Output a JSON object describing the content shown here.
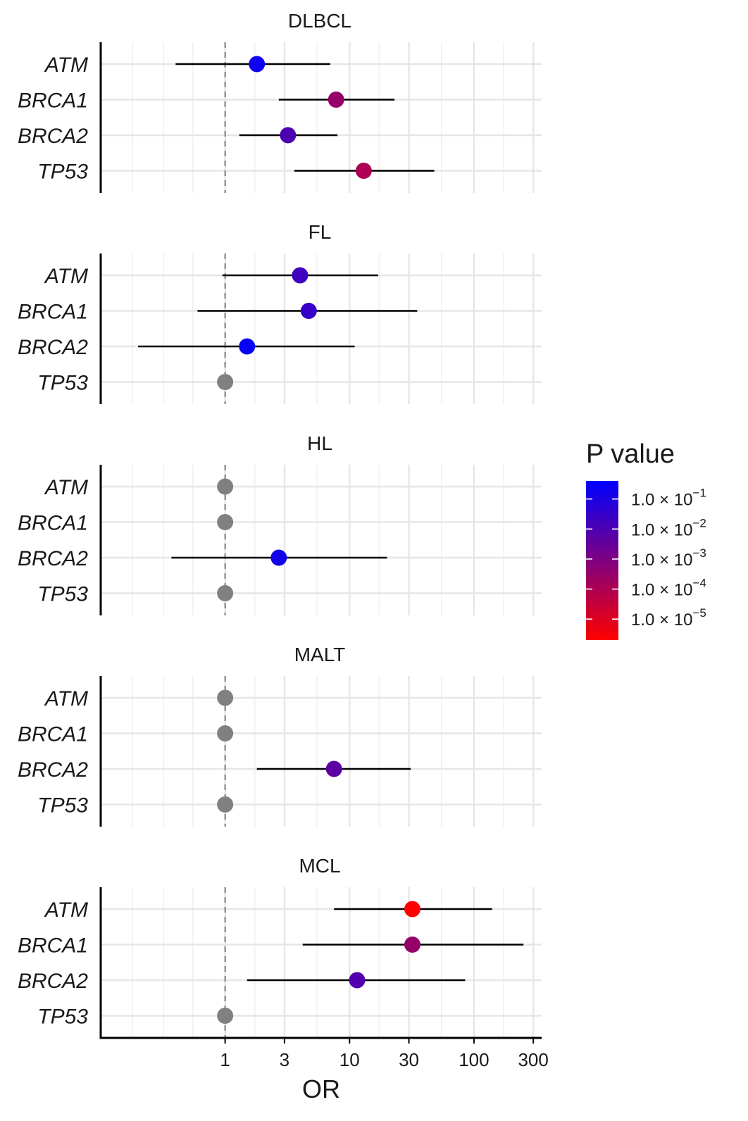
{
  "chart_data": {
    "type": "scatter",
    "subtype": "forest-plot",
    "xlabel": "OR",
    "xscale": "log",
    "x_ticks": [
      1,
      3,
      10,
      30,
      100,
      300
    ],
    "x_tick_labels": [
      "1",
      "3",
      "10",
      "30",
      "100",
      "300"
    ],
    "xlim": [
      0.1,
      350
    ],
    "reference_line": 1,
    "grid": true,
    "legend": {
      "title": "P value",
      "placement": "right",
      "scale": "log",
      "range": [
        2e-06,
        0.4
      ],
      "ticks": [
        0.1,
        0.01,
        0.001,
        0.0001,
        1e-05
      ],
      "tick_labels": [
        {
          "mantissa": "1.0",
          "exponent": "−1"
        },
        {
          "mantissa": "1.0",
          "exponent": "−2"
        },
        {
          "mantissa": "1.0",
          "exponent": "−3"
        },
        {
          "mantissa": "1.0",
          "exponent": "−4"
        },
        {
          "mantissa": "1.0",
          "exponent": "−5"
        }
      ],
      "colors": [
        "#0000ff",
        "#ff0000"
      ]
    },
    "na_color": "#808080",
    "panels": [
      {
        "title": "DLBCL",
        "rows": [
          {
            "gene": "ATM",
            "or": 1.8,
            "lo": 0.4,
            "hi": 7,
            "p": 0.2
          },
          {
            "gene": "BRCA1",
            "or": 7.8,
            "lo": 2.7,
            "hi": 23,
            "p": 0.0003
          },
          {
            "gene": "BRCA2",
            "or": 3.2,
            "lo": 1.3,
            "hi": 8,
            "p": 0.01
          },
          {
            "gene": "TP53",
            "or": 13,
            "lo": 3.6,
            "hi": 48,
            "p": 0.0001
          }
        ]
      },
      {
        "title": "FL",
        "rows": [
          {
            "gene": "ATM",
            "or": 4.0,
            "lo": 0.95,
            "hi": 17,
            "p": 0.02
          },
          {
            "gene": "BRCA1",
            "or": 4.7,
            "lo": 0.6,
            "hi": 35,
            "p": 0.03
          },
          {
            "gene": "BRCA2",
            "or": 1.5,
            "lo": 0.2,
            "hi": 11,
            "p": 0.3
          },
          {
            "gene": "TP53",
            "or": 1,
            "lo": null,
            "hi": null,
            "p": null
          }
        ]
      },
      {
        "title": "HL",
        "rows": [
          {
            "gene": "ATM",
            "or": 1,
            "lo": null,
            "hi": null,
            "p": null
          },
          {
            "gene": "BRCA1",
            "or": 1,
            "lo": null,
            "hi": null,
            "p": null
          },
          {
            "gene": "BRCA2",
            "or": 2.7,
            "lo": 0.37,
            "hi": 20,
            "p": 0.15
          },
          {
            "gene": "TP53",
            "or": 1,
            "lo": null,
            "hi": null,
            "p": null
          }
        ]
      },
      {
        "title": "MALT",
        "rows": [
          {
            "gene": "ATM",
            "or": 1,
            "lo": null,
            "hi": null,
            "p": null
          },
          {
            "gene": "BRCA1",
            "or": 1,
            "lo": null,
            "hi": null,
            "p": null
          },
          {
            "gene": "BRCA2",
            "or": 7.5,
            "lo": 1.8,
            "hi": 31,
            "p": 0.005
          },
          {
            "gene": "TP53",
            "or": 1,
            "lo": null,
            "hi": null,
            "p": null
          }
        ]
      },
      {
        "title": "MCL",
        "rows": [
          {
            "gene": "ATM",
            "or": 32,
            "lo": 7.5,
            "hi": 140,
            "p": 2e-06
          },
          {
            "gene": "BRCA1",
            "or": 32,
            "lo": 4.2,
            "hi": 250,
            "p": 0.0003
          },
          {
            "gene": "BRCA2",
            "or": 11.5,
            "lo": 1.5,
            "hi": 85,
            "p": 0.008
          },
          {
            "gene": "TP53",
            "or": 1,
            "lo": null,
            "hi": null,
            "p": null
          }
        ]
      }
    ]
  }
}
